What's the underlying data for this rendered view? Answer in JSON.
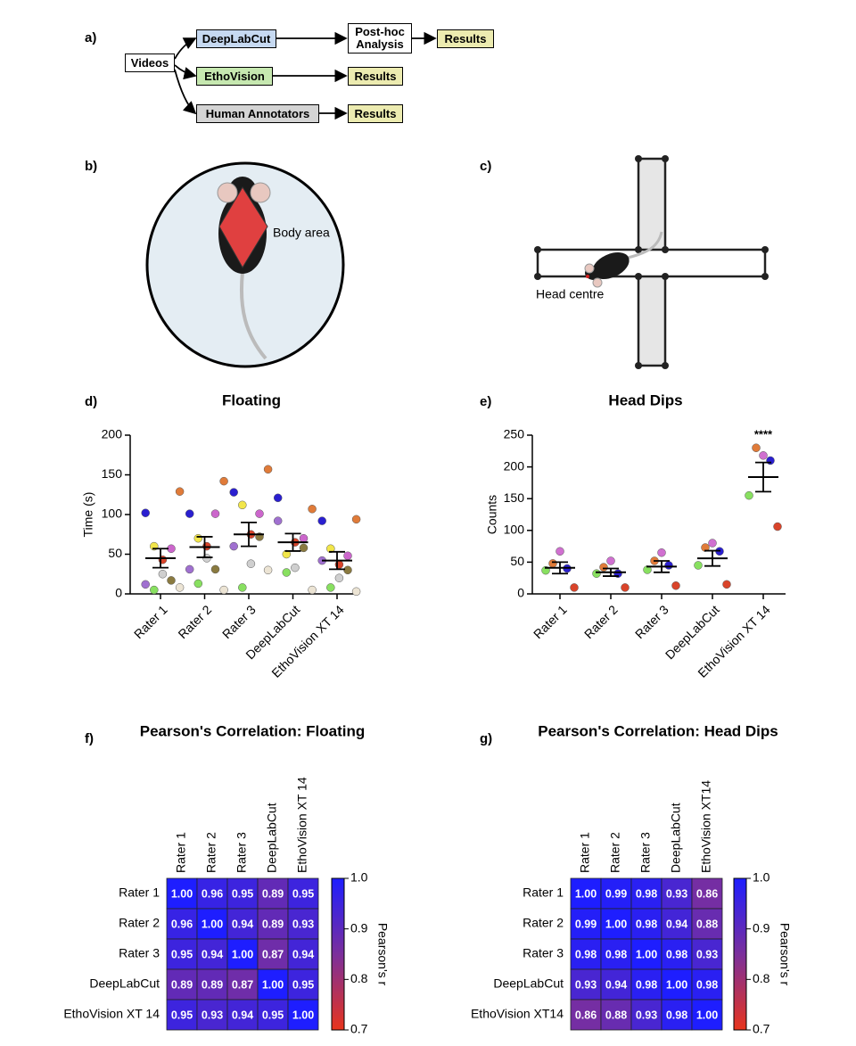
{
  "panel_labels": [
    "a)",
    "b)",
    "c)",
    "d)",
    "e)",
    "f)",
    "g)"
  ],
  "flowchart": {
    "nodes": [
      {
        "label": "Videos"
      },
      {
        "label": "DeepLabCut"
      },
      {
        "label": "EthoVision"
      },
      {
        "label": "Human Annotators"
      },
      {
        "label": "Post-hoc\nAnalysis"
      },
      {
        "label": "Results"
      },
      {
        "label": "Results"
      },
      {
        "label": "Results"
      }
    ]
  },
  "diagram_b": {
    "label": "Body area"
  },
  "diagram_c": {
    "label": "Head centre"
  },
  "chart_data": [
    {
      "type": "dot",
      "title": "Floating",
      "y_label": "Time (s)",
      "categories": [
        "Rater 1",
        "Rater 2",
        "Rater 3",
        "DeepLabCut",
        "EthoVision XT 14"
      ],
      "subject_colors": [
        "#e07b39",
        "#2a1fd0",
        "#cc66cc",
        "#f2e64a",
        "#d9442a",
        "#cfcfcf",
        "#88e060",
        "#8a7a40",
        "#a070d0",
        "#ece4d4"
      ],
      "points": [
        [
          129,
          102,
          57,
          60,
          43,
          25,
          5,
          17,
          12,
          8
        ],
        [
          142,
          101,
          101,
          70,
          60,
          45,
          13,
          31,
          31,
          5
        ],
        [
          157,
          128,
          101,
          112,
          75,
          38,
          8,
          72,
          60,
          30
        ],
        [
          107,
          121,
          70,
          50,
          65,
          33,
          27,
          58,
          92,
          5
        ],
        [
          94,
          92,
          48,
          57,
          37,
          20,
          8,
          30,
          42,
          3
        ]
      ],
      "means": [
        45,
        59,
        75,
        65,
        42
      ],
      "sem": [
        12,
        13,
        15,
        11,
        11
      ],
      "ylim": [
        0,
        200
      ],
      "yticks": [
        0,
        50,
        100,
        150,
        200
      ]
    },
    {
      "type": "dot",
      "title": "Head Dips",
      "y_label": "Counts",
      "categories": [
        "Rater 1",
        "Rater 2",
        "Rater 3",
        "DeepLabCut",
        "EthoVision XT 14"
      ],
      "subject_colors": [
        "#d9442a",
        "#e07b39",
        "#d070d0",
        "#2a1fd0",
        "#88e060"
      ],
      "points": [
        [
          10,
          48,
          67,
          40,
          37
        ],
        [
          10,
          42,
          52,
          32,
          32
        ],
        [
          13,
          52,
          65,
          45,
          38
        ],
        [
          15,
          73,
          80,
          67,
          45
        ],
        [
          106,
          230,
          218,
          210,
          155
        ]
      ],
      "means": [
        41,
        34,
        43,
        56,
        184
      ],
      "sem": [
        9,
        6,
        9,
        12,
        23
      ],
      "annotation": "****",
      "ylim": [
        0,
        250
      ],
      "yticks": [
        0,
        50,
        100,
        150,
        200,
        250
      ]
    },
    {
      "type": "heatmap",
      "title": "Pearson's Correlation: Floating",
      "colorbar_label": "Pearson's r",
      "labels": [
        "Rater 1",
        "Rater 2",
        "Rater 3",
        "DeepLabCut",
        "EthoVision XT 14"
      ],
      "matrix": [
        [
          1,
          0.96,
          0.95,
          0.89,
          0.95
        ],
        [
          0.96,
          1,
          0.94,
          0.89,
          0.93
        ],
        [
          0.95,
          0.94,
          1,
          0.87,
          0.94
        ],
        [
          0.89,
          0.89,
          0.87,
          1,
          0.95
        ],
        [
          0.95,
          0.93,
          0.94,
          0.95,
          1
        ]
      ],
      "value_labels": [
        [
          "1.00",
          "0.96",
          "0.95",
          "0.89",
          "0.95"
        ],
        [
          "0.96",
          "1.00",
          "0.94",
          "0.89",
          "0.93"
        ],
        [
          "0.95",
          "0.94",
          "1.00",
          "0.87",
          "0.94"
        ],
        [
          "0.89",
          "0.89",
          "0.87",
          "1.00",
          "0.95"
        ],
        [
          "0.95",
          "0.93",
          "0.94",
          "0.95",
          "1.00"
        ]
      ],
      "clim": [
        0.7,
        1
      ],
      "cticks": [
        0.7,
        0.8,
        0.9,
        {
          "value": 1,
          "label": "1.0"
        }
      ],
      "colormap": [
        "#e8341c",
        "#7b2f9c",
        "#1e1eff"
      ]
    },
    {
      "type": "heatmap",
      "title": "Pearson's Correlation: Head Dips",
      "colorbar_label": "Pearson's r",
      "labels": [
        "Rater 1",
        "Rater 2",
        "Rater 3",
        "DeepLabCut",
        "EthoVision XT14"
      ],
      "matrix": [
        [
          1,
          0.99,
          0.98,
          0.93,
          0.86
        ],
        [
          0.99,
          1,
          0.98,
          0.94,
          0.88
        ],
        [
          0.98,
          0.98,
          1,
          0.98,
          0.93
        ],
        [
          0.93,
          0.94,
          0.98,
          1,
          0.98
        ],
        [
          0.86,
          0.88,
          0.93,
          0.98,
          1
        ]
      ],
      "value_labels": [
        [
          "1.00",
          "0.99",
          "0.98",
          "0.93",
          "0.86"
        ],
        [
          "0.99",
          "1.00",
          "0.98",
          "0.94",
          "0.88"
        ],
        [
          "0.98",
          "0.98",
          "1.00",
          "0.98",
          "0.93"
        ],
        [
          "0.93",
          "0.94",
          "0.98",
          "1.00",
          "0.98"
        ],
        [
          "0.86",
          "0.88",
          "0.93",
          "0.98",
          "1.00"
        ]
      ],
      "clim": [
        0.7,
        1
      ],
      "cticks": [
        0.7,
        0.8,
        0.9,
        {
          "value": 1,
          "label": "1.0"
        }
      ],
      "colormap": [
        "#e8341c",
        "#7b2f9c",
        "#1e1eff"
      ]
    }
  ]
}
